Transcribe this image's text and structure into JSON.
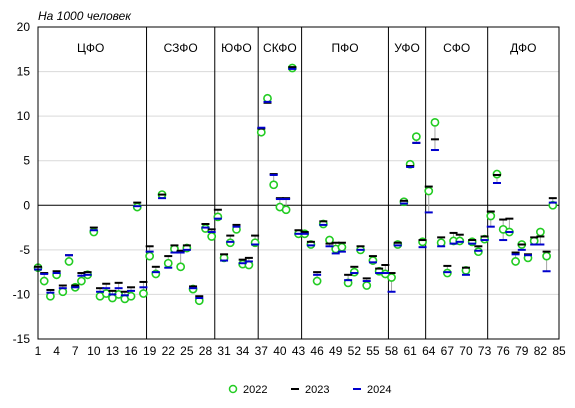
{
  "chart_data": {
    "type": "scatter",
    "units_label": "На 1000 человек",
    "ylim": [
      -15,
      20
    ],
    "yticks": [
      20,
      15,
      10,
      5,
      0,
      -5,
      -10,
      -15
    ],
    "xlim": [
      1,
      85
    ],
    "xticks": [
      1,
      4,
      7,
      10,
      13,
      16,
      19,
      22,
      25,
      28,
      31,
      34,
      37,
      40,
      43,
      46,
      49,
      52,
      55,
      58,
      61,
      64,
      67,
      70,
      73,
      76,
      79,
      82,
      85
    ],
    "grid": "horizontal",
    "legend_position": "bottom",
    "federal_districts": [
      {
        "label": "ЦФО",
        "start": 1,
        "end": 18
      },
      {
        "label": "СЗФО",
        "start": 19,
        "end": 29
      },
      {
        "label": "ЮФО",
        "start": 30,
        "end": 36
      },
      {
        "label": "СКФО",
        "start": 37,
        "end": 43
      },
      {
        "label": "ПФО",
        "start": 44,
        "end": 57
      },
      {
        "label": "УФО",
        "start": 58,
        "end": 63
      },
      {
        "label": "СФО",
        "start": 64,
        "end": 73
      },
      {
        "label": "ДФО",
        "start": 74,
        "end": 85
      }
    ],
    "series": [
      {
        "name": "2022",
        "marker": "circle",
        "color": "#22cc22",
        "values": [
          -7.0,
          -8.5,
          -10.2,
          -7.8,
          -9.7,
          -6.3,
          -9.2,
          -8.5,
          -7.8,
          -3.0,
          -10.2,
          -9.9,
          -10.4,
          -10.0,
          -10.5,
          -10.2,
          -0.2,
          -9.9,
          -5.7,
          -7.7,
          1.2,
          -6.5,
          -4.9,
          -6.9,
          -4.8,
          -9.4,
          -10.7,
          -2.6,
          -3.5,
          -1.3,
          -5.9,
          -4.2,
          -2.7,
          -6.6,
          -6.7,
          -4.2,
          8.2,
          12.0,
          2.3,
          -0.2,
          -0.5,
          15.4,
          -3.2,
          -3.2,
          -4.4,
          -8.5,
          -2.1,
          -3.9,
          -4.9,
          -4.7,
          -8.7,
          -7.5,
          -5.0,
          -9.0,
          -6.2,
          -7.4,
          -7.7,
          -8.1,
          -4.4,
          0.4,
          4.6,
          7.7,
          -4.1,
          1.6,
          9.3,
          -4.2,
          -7.6,
          -4.0,
          -4.0,
          -7.3,
          -4.1,
          -5.2,
          -3.8,
          -1.2,
          3.5,
          -2.7,
          -3.0,
          -6.3,
          -4.4,
          -5.9,
          -4.0,
          -3.0,
          -5.7,
          0.0
        ]
      },
      {
        "name": "2023",
        "marker": "dash",
        "color": "#000000",
        "values": [
          -6.9,
          -7.6,
          -9.5,
          -7.4,
          -9.0,
          -5.6,
          -9.0,
          -7.6,
          -7.5,
          -2.5,
          -9.3,
          -8.8,
          -9.6,
          -8.7,
          -9.7,
          -9.2,
          0.3,
          -8.6,
          -4.6,
          -6.9,
          1.2,
          -5.7,
          -4.5,
          -5.1,
          -4.5,
          -9.1,
          -10.2,
          -2.1,
          -2.7,
          -0.5,
          -5.5,
          -3.4,
          -2.2,
          -6.1,
          -5.9,
          -3.4,
          8.6,
          11.5,
          3.5,
          0.8,
          0.8,
          15.5,
          -2.8,
          -3.0,
          -4.1,
          -7.5,
          -1.8,
          -4.3,
          -4.2,
          -4.2,
          -7.8,
          -6.9,
          -4.6,
          -8.2,
          -5.7,
          -7.1,
          -6.7,
          -7.6,
          -4.2,
          0.5,
          4.4,
          7.0,
          -3.9,
          2.1,
          7.4,
          -3.6,
          -6.8,
          -3.1,
          -3.3,
          -7.0,
          -3.9,
          -4.6,
          -3.5,
          -0.7,
          3.4,
          -1.6,
          -1.5,
          -5.3,
          -4.4,
          -5.5,
          -3.6,
          -3.5,
          -5.2,
          0.8
        ]
      },
      {
        "name": "2024",
        "marker": "dash",
        "color": "#0000cc",
        "values": [
          -7.2,
          -7.7,
          -9.8,
          -7.6,
          -9.3,
          -5.6,
          -9.2,
          -7.9,
          -7.8,
          -2.8,
          -9.7,
          -9.3,
          -10.0,
          -9.3,
          -10.1,
          -9.6,
          -0.1,
          -9.2,
          -5.2,
          -7.5,
          0.8,
          -7.0,
          -5.3,
          -5.3,
          -5.0,
          -9.3,
          -10.4,
          -2.5,
          -3.0,
          -1.5,
          -6.2,
          -4.1,
          -2.4,
          -6.5,
          -6.3,
          -4.4,
          8.7,
          11.6,
          3.4,
          0.7,
          0.7,
          15.3,
          -3.2,
          -3.2,
          -4.5,
          -7.8,
          -2.2,
          -4.6,
          -5.4,
          -5.2,
          -8.4,
          -7.6,
          -5.0,
          -8.5,
          -6.4,
          -7.6,
          -7.6,
          -9.7,
          -4.5,
          0.2,
          4.3,
          7.0,
          -4.7,
          -0.8,
          6.2,
          -4.6,
          -7.5,
          -4.3,
          -4.1,
          -7.8,
          -4.3,
          -5.1,
          -3.9,
          -2.4,
          2.5,
          -3.9,
          -3.0,
          -5.5,
          -5.0,
          -5.6,
          -4.4,
          -4.4,
          -7.4,
          0.3
        ]
      }
    ]
  }
}
